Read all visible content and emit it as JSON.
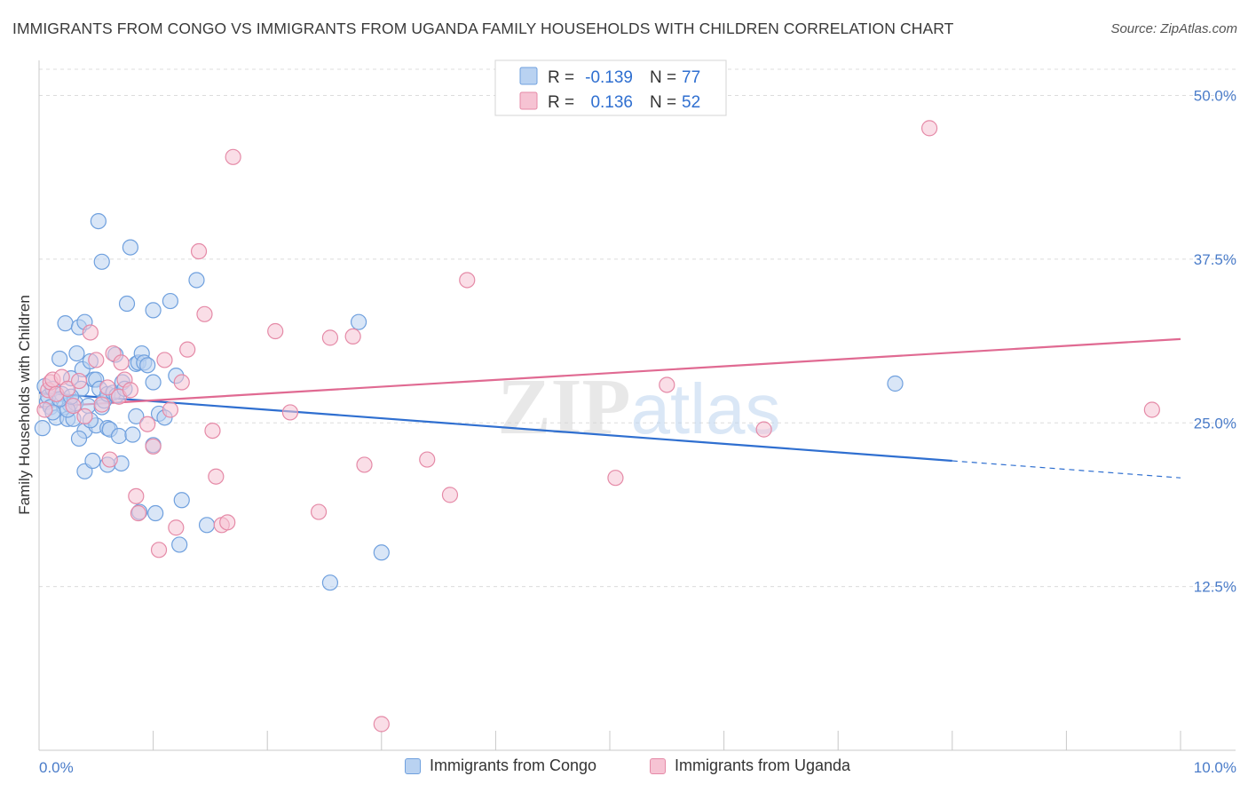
{
  "chart_data": {
    "type": "scatter",
    "title": "IMMIGRANTS FROM CONGO VS IMMIGRANTS FROM UGANDA FAMILY HOUSEHOLDS WITH CHILDREN CORRELATION CHART",
    "source": "Source: ZipAtlas.com",
    "ylabel": "Family Households with Children",
    "xlabel": "",
    "xlim": [
      0,
      10
    ],
    "ylim": [
      0,
      52
    ],
    "x_tick_labels": {
      "left": "0.0%",
      "right": "10.0%"
    },
    "y_ticks": [
      {
        "value": 12.5,
        "label": "12.5%"
      },
      {
        "value": 25.0,
        "label": "25.0%"
      },
      {
        "value": 37.5,
        "label": "37.5%"
      },
      {
        "value": 50.0,
        "label": "50.0%"
      }
    ],
    "grid": true,
    "watermark": "ZIPatlas",
    "legend": {
      "r_label": "R =",
      "n_label": "N =",
      "entries": [
        {
          "r": "-0.139",
          "n": "77"
        },
        {
          "r": "0.136",
          "n": "52"
        }
      ]
    },
    "series": [
      {
        "name": "Immigrants from Congo",
        "color": "#6fa0de",
        "fill": "#b9d2f1",
        "trend": {
          "x0": 0,
          "y0": 27.3,
          "x1": 8.0,
          "y1": 22.1,
          "dash_to_x": 10,
          "dash_to_y": 20.8,
          "color": "#2f6fd0"
        },
        "points": [
          [
            0.03,
            24.6
          ],
          [
            0.05,
            27.8
          ],
          [
            0.07,
            26.6
          ],
          [
            0.08,
            27.0
          ],
          [
            0.1,
            26.2
          ],
          [
            0.12,
            27.6
          ],
          [
            0.15,
            25.4
          ],
          [
            0.18,
            29.9
          ],
          [
            0.2,
            27.2
          ],
          [
            0.22,
            26.2
          ],
          [
            0.23,
            32.6
          ],
          [
            0.25,
            25.3
          ],
          [
            0.27,
            26.4
          ],
          [
            0.28,
            28.4
          ],
          [
            0.3,
            25.3
          ],
          [
            0.32,
            26.5
          ],
          [
            0.33,
            30.3
          ],
          [
            0.35,
            32.3
          ],
          [
            0.37,
            27.6
          ],
          [
            0.38,
            29.1
          ],
          [
            0.4,
            21.3
          ],
          [
            0.4,
            24.4
          ],
          [
            0.4,
            32.7
          ],
          [
            0.43,
            26.3
          ],
          [
            0.45,
            29.7
          ],
          [
            0.47,
            22.1
          ],
          [
            0.48,
            28.3
          ],
          [
            0.5,
            28.3
          ],
          [
            0.5,
            24.8
          ],
          [
            0.52,
            40.4
          ],
          [
            0.53,
            27.6
          ],
          [
            0.55,
            37.3
          ],
          [
            0.55,
            26.2
          ],
          [
            0.57,
            26.7
          ],
          [
            0.6,
            24.6
          ],
          [
            0.6,
            27.2
          ],
          [
            0.62,
            24.5
          ],
          [
            0.65,
            27.3
          ],
          [
            0.67,
            30.2
          ],
          [
            0.68,
            27.1
          ],
          [
            0.7,
            24.0
          ],
          [
            0.72,
            21.9
          ],
          [
            0.73,
            28.1
          ],
          [
            0.75,
            27.6
          ],
          [
            0.77,
            34.1
          ],
          [
            0.8,
            38.4
          ],
          [
            0.82,
            24.1
          ],
          [
            0.85,
            29.5
          ],
          [
            0.87,
            29.6
          ],
          [
            0.88,
            18.2
          ],
          [
            0.9,
            30.3
          ],
          [
            0.92,
            29.6
          ],
          [
            0.95,
            29.4
          ],
          [
            1.0,
            28.1
          ],
          [
            1.0,
            33.6
          ],
          [
            1.02,
            18.1
          ],
          [
            1.05,
            25.7
          ],
          [
            1.1,
            25.4
          ],
          [
            1.15,
            34.3
          ],
          [
            1.2,
            28.6
          ],
          [
            1.23,
            15.7
          ],
          [
            1.25,
            19.1
          ],
          [
            1.38,
            35.9
          ],
          [
            1.47,
            17.2
          ],
          [
            2.55,
            12.8
          ],
          [
            2.8,
            32.7
          ],
          [
            3.0,
            15.1
          ],
          [
            7.5,
            28.0
          ],
          [
            1.0,
            23.3
          ],
          [
            0.25,
            26.0
          ],
          [
            0.35,
            23.8
          ],
          [
            0.45,
            25.2
          ],
          [
            0.6,
            21.8
          ],
          [
            0.85,
            25.5
          ],
          [
            0.18,
            26.8
          ],
          [
            0.12,
            25.8
          ],
          [
            0.28,
            27.0
          ]
        ]
      },
      {
        "name": "Immigrants from Uganda",
        "color": "#e58aa7",
        "fill": "#f6c3d3",
        "trend": {
          "x0": 0,
          "y0": 26.2,
          "x1": 10,
          "y1": 31.4,
          "color": "#e06a92"
        },
        "points": [
          [
            0.05,
            26.0
          ],
          [
            0.08,
            27.5
          ],
          [
            0.1,
            28.1
          ],
          [
            0.12,
            28.3
          ],
          [
            0.15,
            27.2
          ],
          [
            0.2,
            28.5
          ],
          [
            0.25,
            27.6
          ],
          [
            0.3,
            26.3
          ],
          [
            0.35,
            28.2
          ],
          [
            0.4,
            25.5
          ],
          [
            0.45,
            31.9
          ],
          [
            0.5,
            29.8
          ],
          [
            0.55,
            26.4
          ],
          [
            0.6,
            27.7
          ],
          [
            0.62,
            22.2
          ],
          [
            0.65,
            30.3
          ],
          [
            0.7,
            27.0
          ],
          [
            0.72,
            29.6
          ],
          [
            0.75,
            28.3
          ],
          [
            0.8,
            27.5
          ],
          [
            0.85,
            19.4
          ],
          [
            0.87,
            18.1
          ],
          [
            0.95,
            24.9
          ],
          [
            1.0,
            23.2
          ],
          [
            1.05,
            15.3
          ],
          [
            1.1,
            29.8
          ],
          [
            1.15,
            26.0
          ],
          [
            1.2,
            17.0
          ],
          [
            1.25,
            28.1
          ],
          [
            1.3,
            30.6
          ],
          [
            1.4,
            38.1
          ],
          [
            1.45,
            33.3
          ],
          [
            1.52,
            24.4
          ],
          [
            1.55,
            20.9
          ],
          [
            1.6,
            17.2
          ],
          [
            1.65,
            17.4
          ],
          [
            1.7,
            45.3
          ],
          [
            2.07,
            32.0
          ],
          [
            2.2,
            25.8
          ],
          [
            2.45,
            18.2
          ],
          [
            2.55,
            31.5
          ],
          [
            2.75,
            31.6
          ],
          [
            2.85,
            21.8
          ],
          [
            3.0,
            2.0
          ],
          [
            3.4,
            22.2
          ],
          [
            3.6,
            19.5
          ],
          [
            3.75,
            35.9
          ],
          [
            5.05,
            20.8
          ],
          [
            5.5,
            27.9
          ],
          [
            6.35,
            24.5
          ],
          [
            7.8,
            47.5
          ],
          [
            9.75,
            26.0
          ]
        ]
      }
    ]
  }
}
